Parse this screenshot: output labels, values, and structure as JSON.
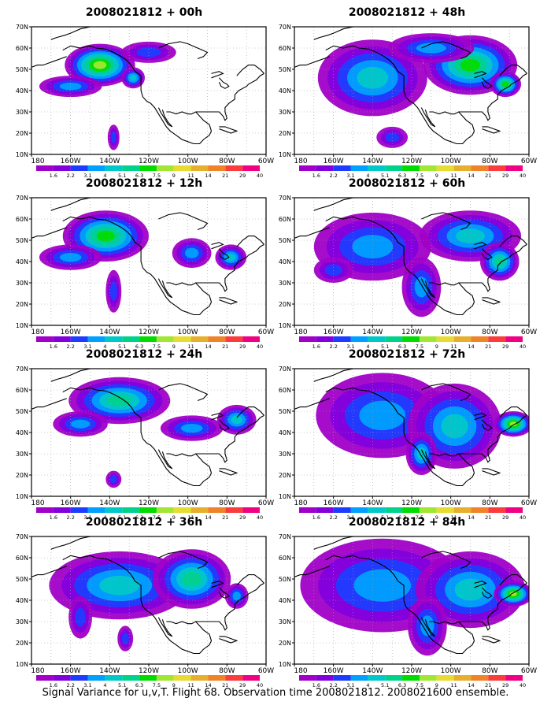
{
  "figure": {
    "caption": "Signal Variance for u,v,T. Flight 68. Observation time 2008021812. 2008021600 ensemble."
  },
  "map": {
    "lat_labels": [
      "70N",
      "60N",
      "50N",
      "40N",
      "30N",
      "20N",
      "10N"
    ],
    "lon_labels": [
      "180",
      "160W",
      "140W",
      "120W",
      "100W",
      "80W",
      "60W"
    ]
  },
  "colorbar": {
    "values": [
      "1.6",
      "2.2",
      "3.1",
      "4",
      "5.1",
      "6.3",
      "7.5",
      "9",
      "11",
      "14",
      "21",
      "29",
      "40"
    ],
    "colors": [
      "#a000c8",
      "#8200dc",
      "#1e3cff",
      "#00a0ff",
      "#00c8c8",
      "#00d28c",
      "#00dc00",
      "#a0e632",
      "#e6dc32",
      "#e6af2d",
      "#f08228",
      "#fa3c3c",
      "#f00082"
    ]
  },
  "panels": [
    {
      "title": "2008021812 + 00h",
      "lead_hours": 0
    },
    {
      "title": "2008021812 + 48h",
      "lead_hours": 48
    },
    {
      "title": "2008021812 + 12h",
      "lead_hours": 12
    },
    {
      "title": "2008021812 + 60h",
      "lead_hours": 60
    },
    {
      "title": "2008021812 + 24h",
      "lead_hours": 24
    },
    {
      "title": "2008021812 + 72h",
      "lead_hours": 72
    },
    {
      "title": "2008021812 + 36h",
      "lead_hours": 36
    },
    {
      "title": "2008021812 + 84h",
      "lead_hours": 84
    }
  ]
}
